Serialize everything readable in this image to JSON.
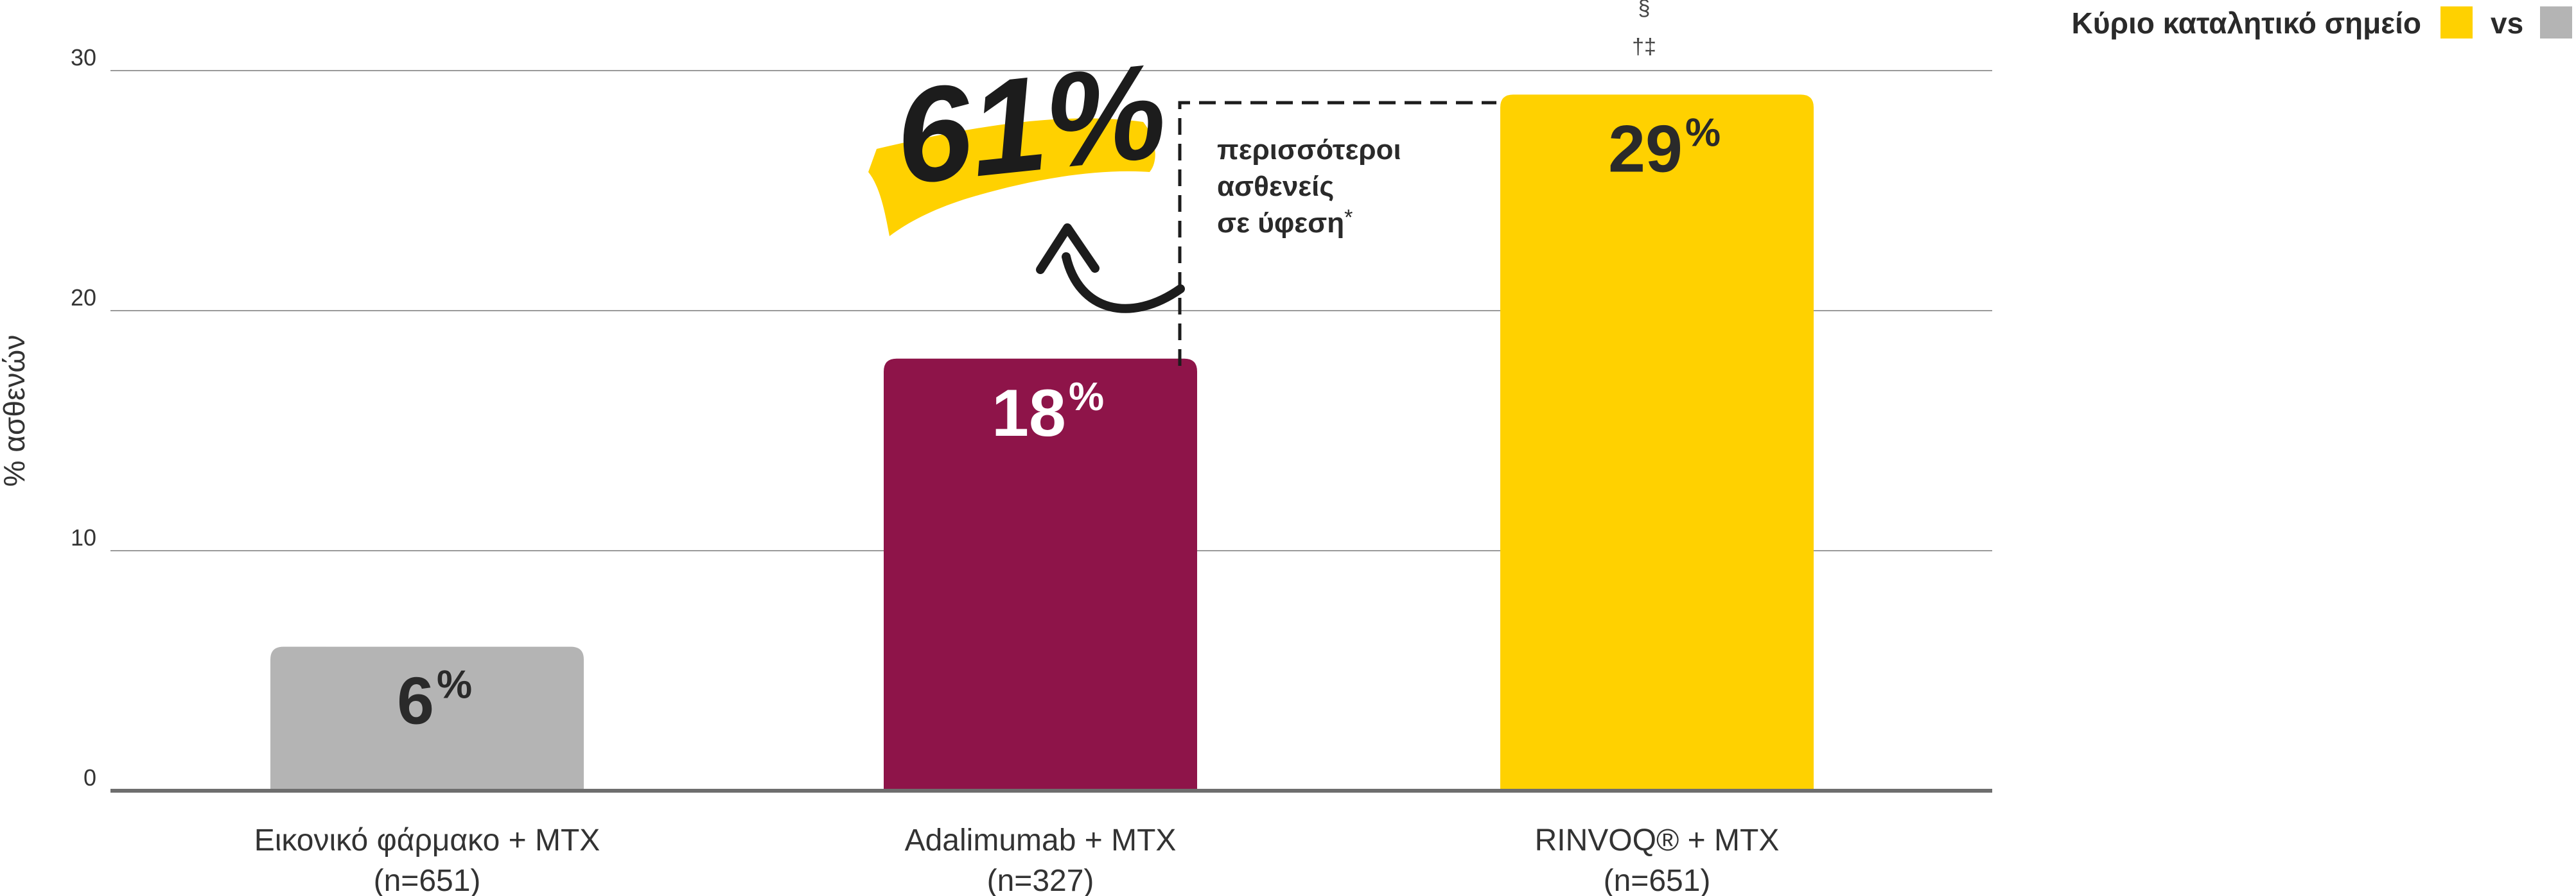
{
  "legend": {
    "label": "Κύριο καταλητικό σημείο",
    "vs": "vs",
    "swatch_primary_color": "#FFD100",
    "swatch_secondary_color": "#B4B4B4"
  },
  "callout": {
    "big_value": "61%",
    "lines": [
      "περισσότεροι",
      "ασθενείς",
      "σε ύφεση"
    ],
    "footnote_mark": "*",
    "highlight_color": "#FFD100"
  },
  "significance": {
    "line1": "§",
    "line2": "†‡"
  },
  "chart_data": {
    "type": "bar",
    "ylabel": "% ασθενών",
    "ylim": [
      0,
      30
    ],
    "yticks": [
      0,
      10,
      20,
      30
    ],
    "grid": true,
    "legend_position": "top-right",
    "categories": [
      {
        "name": "Εικονικό φάρμακο + MTX",
        "n": "(n=651)",
        "value": 6,
        "label": "6",
        "color": "#B4B4B4",
        "text_color": "#2a2a2a"
      },
      {
        "name": "Adalimumab + MTX",
        "n": "(n=327)",
        "value": 18,
        "label": "18",
        "color": "#8E1449",
        "text_color": "#ffffff"
      },
      {
        "name": "RINVOQ® + MTX",
        "n": "(n=651)",
        "value": 29,
        "label": "29",
        "color": "#FFD100",
        "text_color": "#2a2a2a"
      }
    ]
  }
}
